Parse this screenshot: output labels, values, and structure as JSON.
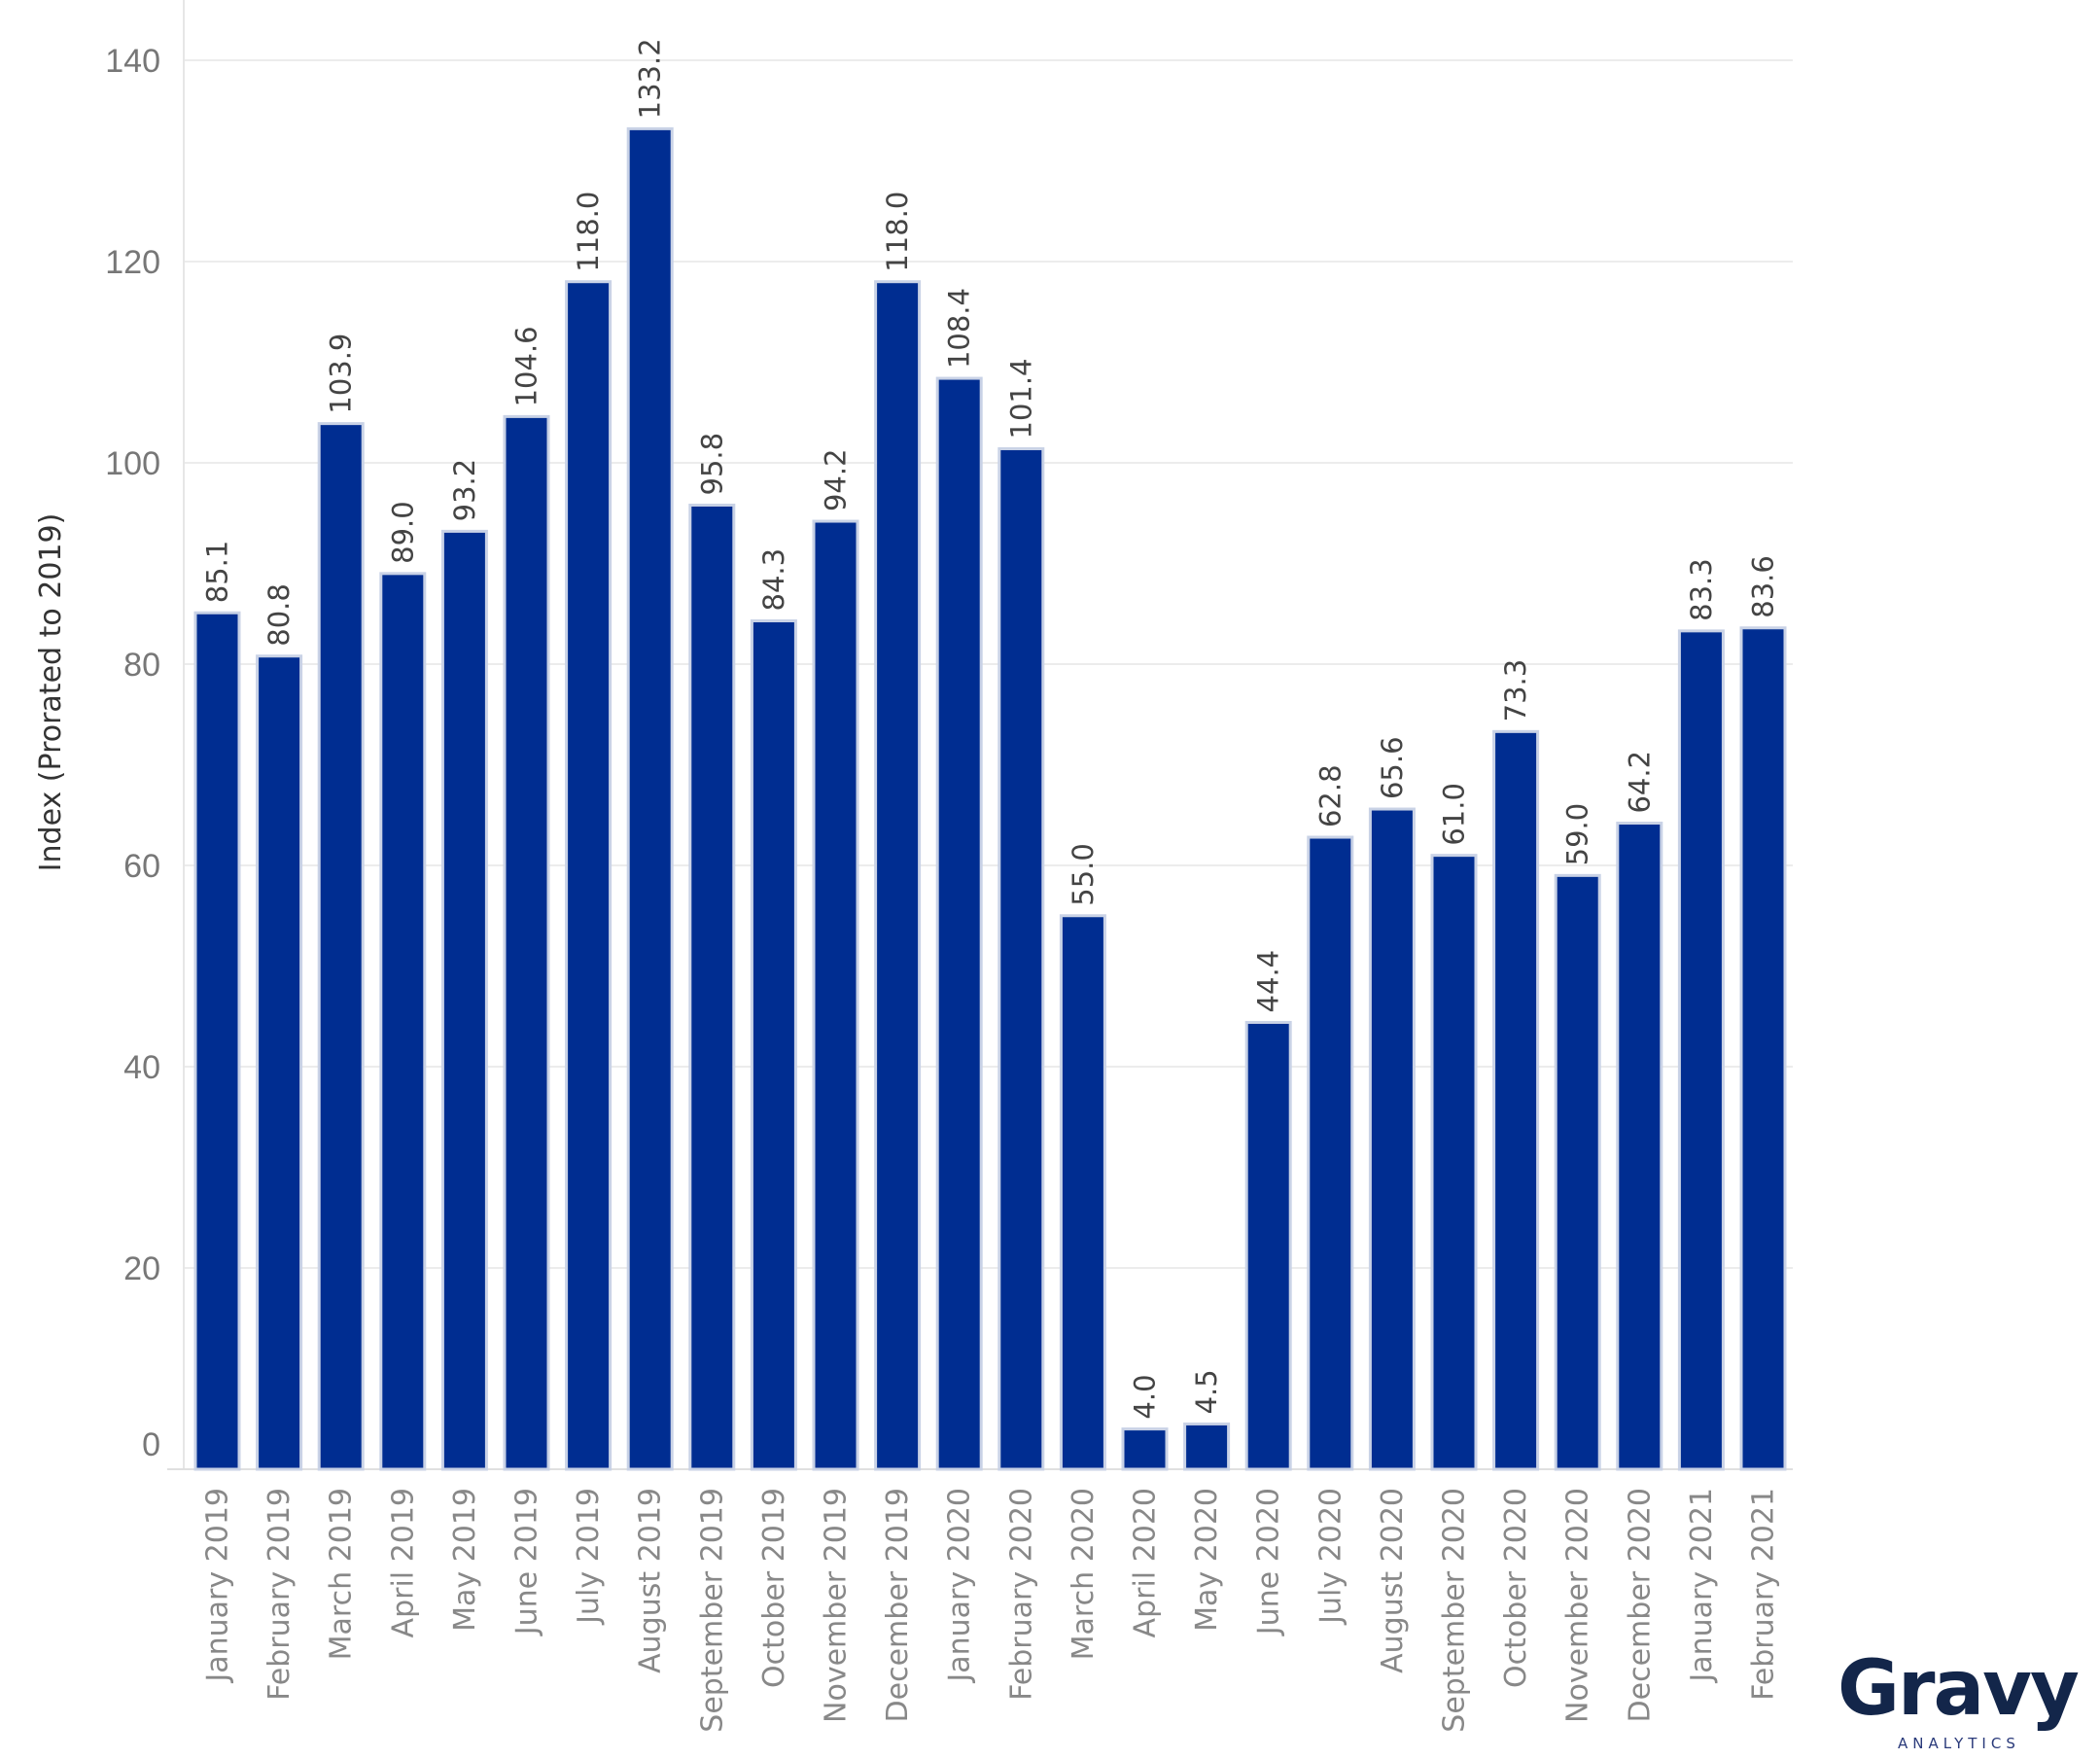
{
  "chart_data": {
    "type": "bar",
    "title": "",
    "xlabel": "",
    "ylabel": "Index (Prorated to 2019)",
    "ylim": [
      0,
      140
    ],
    "yticks": [
      0,
      20,
      40,
      60,
      80,
      100,
      120,
      140
    ],
    "grid": true,
    "bar_color": "#002d91",
    "categories": [
      "January 2019",
      "February 2019",
      "March 2019",
      "April 2019",
      "May 2019",
      "June 2019",
      "July 2019",
      "August 2019",
      "September 2019",
      "October 2019",
      "November 2019",
      "December 2019",
      "January 2020",
      "February 2020",
      "March 2020",
      "April 2020",
      "May 2020",
      "June 2020",
      "July 2020",
      "August 2020",
      "September 2020",
      "October 2020",
      "November 2020",
      "December 2020",
      "January 2021",
      "February 2021"
    ],
    "values": [
      85.1,
      80.8,
      103.9,
      89.0,
      93.2,
      104.6,
      118.0,
      133.2,
      95.8,
      84.3,
      94.2,
      118.0,
      108.4,
      101.4,
      55.0,
      4.0,
      4.5,
      44.4,
      62.8,
      65.6,
      61.0,
      73.3,
      59.0,
      64.2,
      83.3,
      83.6
    ],
    "value_labels": [
      "85.1",
      "80.8",
      "103.9",
      "89.0",
      "93.2",
      "104.6",
      "118.0",
      "133.2",
      "95.8",
      "84.3",
      "94.2",
      "118.0",
      "108.4",
      "101.4",
      "55.0",
      "4.0",
      "4.5",
      "44.4",
      "62.8",
      "65.6",
      "61.0",
      "73.3",
      "59.0",
      "64.2",
      "83.3",
      "83.6"
    ]
  },
  "logo": {
    "name": "Gravy",
    "subtitle": "ANALYTICS"
  }
}
